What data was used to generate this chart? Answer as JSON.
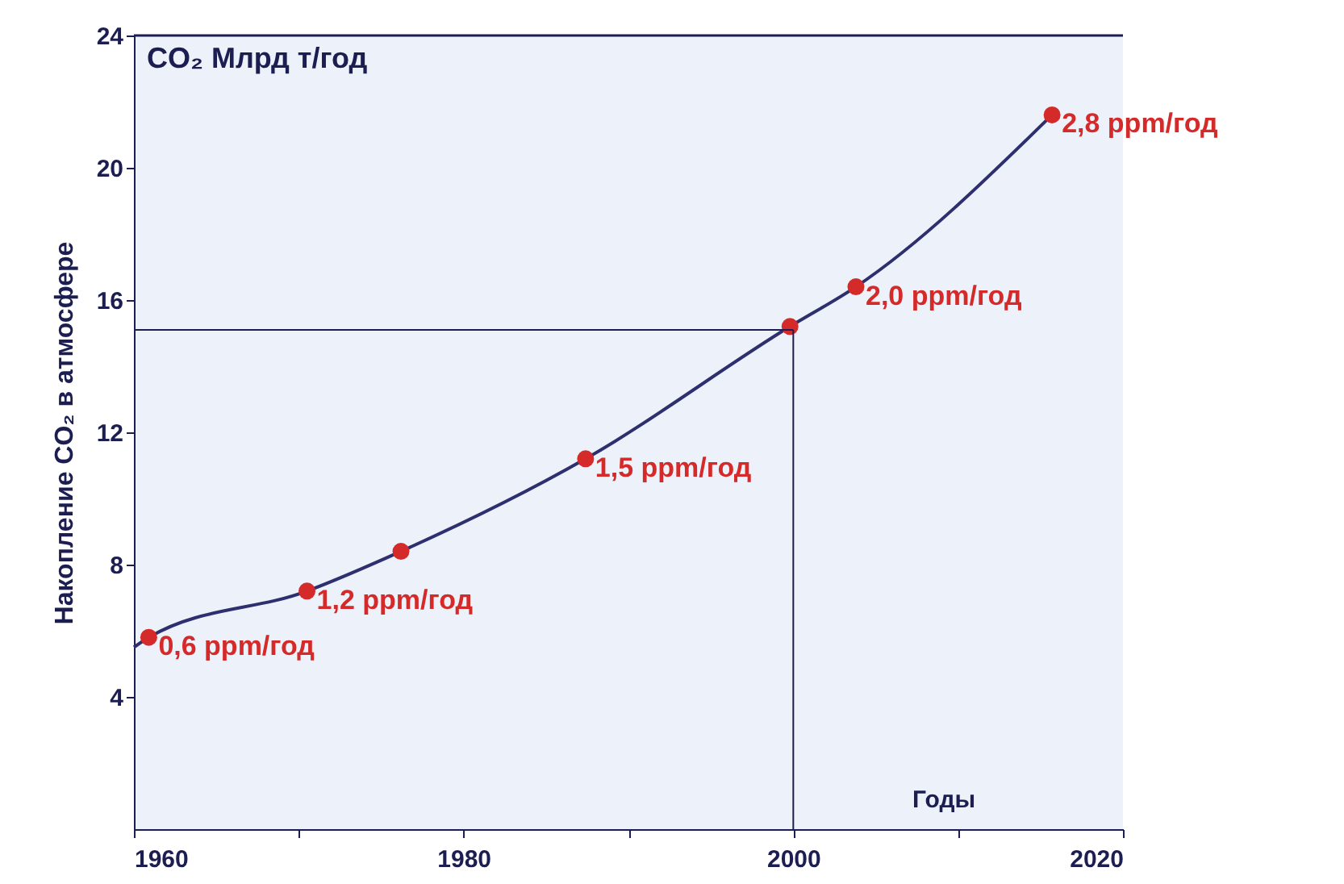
{
  "chart_data": {
    "type": "line",
    "xlabel": "Годы",
    "ylabel": "Накопление CO₂ в атмосфере",
    "xlim": [
      1960,
      2020
    ],
    "ylim": [
      0,
      24
    ],
    "xticks": [
      1960,
      {
        "value": 1970,
        "label": null
      },
      1980,
      {
        "value": 1990,
        "label": null
      },
      2000,
      {
        "value": 2010,
        "label": null
      },
      2020
    ],
    "yticks": [
      4,
      8,
      12,
      16,
      20,
      24
    ],
    "grid": false,
    "series": [
      {
        "color": "#2e2f6e",
        "marker": "none",
        "x": [
          1960,
          1960.9,
          1970.5,
          1976.2,
          1987.4,
          1999.8,
          2003.8,
          2015.7
        ],
        "values": [
          5.5,
          5.8,
          7.2,
          8.4,
          11.2,
          15.2,
          16.4,
          21.6
        ]
      },
      {
        "type": "scatter",
        "color": "#d42a2a",
        "marker": "circle",
        "x": [
          1960.9,
          1970.5,
          1976.2,
          1987.4,
          1999.8,
          2003.8,
          2015.7
        ],
        "values": [
          5.8,
          7.2,
          8.4,
          11.2,
          15.2,
          16.4,
          21.6
        ]
      }
    ],
    "ref_lines": [
      {
        "axis": "y",
        "value": 15.1
      },
      {
        "axis": "x",
        "value": 2000
      }
    ],
    "annotations": [
      "CO₂ Млрд т/год",
      {
        "text": "0,6 ppm/год",
        "x": 1960.9,
        "y": 5.8
      },
      {
        "text": "1,2 ppm/год",
        "x": 1970.5,
        "y": 7.2
      },
      {
        "text": "1,5 ppm/год",
        "x": 1987.4,
        "y": 11.2
      },
      {
        "text": "2,0 ppm/год",
        "x": 2003.8,
        "y": 16.4
      },
      {
        "text": "2,8 ppm/год",
        "x": 2015.7,
        "y": 21.6
      }
    ]
  }
}
